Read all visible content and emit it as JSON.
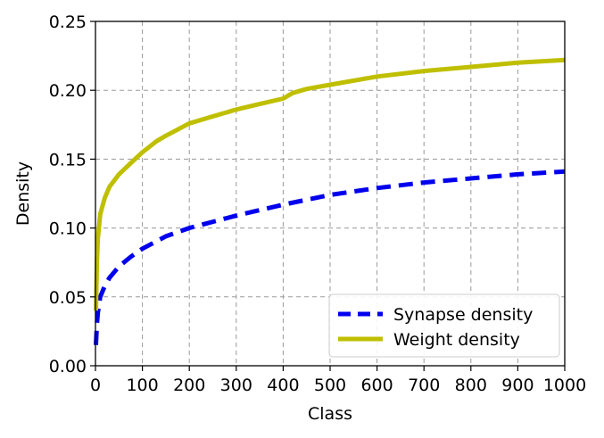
{
  "chart_data": {
    "type": "line",
    "title": "",
    "xlabel": "Class",
    "ylabel": "Density",
    "xlim": [
      0,
      1000
    ],
    "ylim": [
      0,
      0.25
    ],
    "xticks": [
      0,
      100,
      200,
      300,
      400,
      500,
      600,
      700,
      800,
      900,
      1000
    ],
    "xtick_labels": [
      "0",
      "100",
      "200",
      "300",
      "400",
      "500",
      "600",
      "700",
      "800",
      "900",
      "1000"
    ],
    "yticks": [
      0,
      0.05,
      0.1,
      0.15,
      0.2,
      0.25
    ],
    "ytick_labels": [
      "0.00",
      "0.05",
      "0.10",
      "0.15",
      "0.20",
      "0.25"
    ],
    "grid": true,
    "legend_position": "bottom-right",
    "series": [
      {
        "name": "Synapse density",
        "color": "#0000ee",
        "style": "dashed",
        "x": [
          1,
          3,
          5,
          10,
          20,
          30,
          50,
          75,
          100,
          150,
          200,
          300,
          400,
          500,
          600,
          700,
          800,
          900,
          1000
        ],
        "y": [
          0.015,
          0.03,
          0.038,
          0.05,
          0.058,
          0.064,
          0.072,
          0.079,
          0.085,
          0.094,
          0.1,
          0.109,
          0.117,
          0.124,
          0.129,
          0.133,
          0.136,
          0.139,
          0.141
        ]
      },
      {
        "name": "Weight density",
        "color": "#bfbf00",
        "style": "solid",
        "x": [
          1,
          3,
          5,
          10,
          20,
          30,
          50,
          75,
          100,
          130,
          150,
          200,
          250,
          300,
          350,
          400,
          420,
          450,
          500,
          600,
          700,
          800,
          900,
          1000
        ],
        "y": [
          0.04,
          0.075,
          0.092,
          0.11,
          0.122,
          0.13,
          0.139,
          0.147,
          0.155,
          0.163,
          0.167,
          0.176,
          0.181,
          0.186,
          0.19,
          0.194,
          0.198,
          0.201,
          0.204,
          0.21,
          0.214,
          0.217,
          0.22,
          0.222
        ]
      }
    ]
  }
}
